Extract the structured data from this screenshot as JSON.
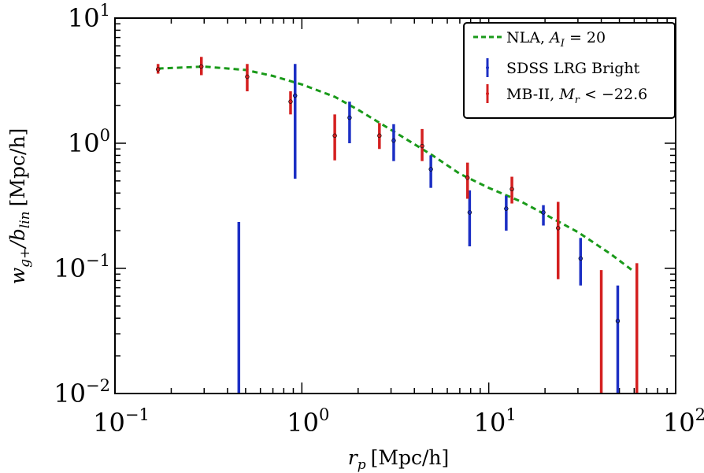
{
  "chart_data": {
    "type": "scatter",
    "xlabel": "r",
    "xlabel_sub": "p",
    "xlabel_units": "[Mpc/h]",
    "ylabel": "w",
    "ylabel_sub1": "g+",
    "ylabel_mid": "/b",
    "ylabel_sub2": "lin",
    "ylabel_units": "[Mpc/h]",
    "x_scale": "log",
    "y_scale": "log",
    "xlim": [
      0.1,
      100
    ],
    "ylim": [
      0.01,
      10
    ],
    "x_ticks": [
      {
        "value": 0.1,
        "base": "10",
        "exp": "−1"
      },
      {
        "value": 1,
        "base": "10",
        "exp": "0"
      },
      {
        "value": 10,
        "base": "10",
        "exp": "1"
      },
      {
        "value": 100,
        "base": "10",
        "exp": "2"
      }
    ],
    "y_ticks": [
      {
        "value": 0.01,
        "base": "10",
        "exp": "−2"
      },
      {
        "value": 0.1,
        "base": "10",
        "exp": "−1"
      },
      {
        "value": 1,
        "base": "10",
        "exp": "0"
      },
      {
        "value": 10,
        "base": "10",
        "exp": "1"
      }
    ],
    "legend_position": "top-right",
    "series": [
      {
        "name": "NLA, ",
        "name_math": "A",
        "name_sub": "I",
        "name_tail": " = 20",
        "kind": "line",
        "style": "dashed",
        "color": "#1a9a1a",
        "points": [
          [
            0.17,
            3.95
          ],
          [
            0.3,
            4.1
          ],
          [
            0.5,
            3.85
          ],
          [
            0.7,
            3.45
          ],
          [
            1.0,
            2.95
          ],
          [
            1.5,
            2.35
          ],
          [
            2.0,
            1.85
          ],
          [
            3.0,
            1.28
          ],
          [
            5.0,
            0.8
          ],
          [
            7.0,
            0.57
          ],
          [
            10.0,
            0.44
          ],
          [
            15.0,
            0.34
          ],
          [
            20.0,
            0.27
          ],
          [
            30.0,
            0.195
          ],
          [
            45.0,
            0.13
          ],
          [
            60.0,
            0.094
          ]
        ]
      },
      {
        "name": "SDSS LRG Bright",
        "kind": "errorbar",
        "color": "#1c2fc4",
        "points": [
          {
            "x": 0.46,
            "y": null,
            "lo": 0.01,
            "hi": 0.235
          },
          {
            "x": 0.92,
            "y": 2.4,
            "lo": 0.52,
            "hi": 4.3
          },
          {
            "x": 1.8,
            "y": 1.6,
            "lo": 1.0,
            "hi": 2.15
          },
          {
            "x": 3.1,
            "y": 1.05,
            "lo": 0.72,
            "hi": 1.42
          },
          {
            "x": 4.9,
            "y": 0.62,
            "lo": 0.44,
            "hi": 0.8
          },
          {
            "x": 7.9,
            "y": 0.28,
            "lo": 0.15,
            "hi": 0.42
          },
          {
            "x": 12.4,
            "y": 0.3,
            "lo": 0.2,
            "hi": 0.38
          },
          {
            "x": 19.6,
            "y": 0.28,
            "lo": 0.22,
            "hi": 0.32
          },
          {
            "x": 31.0,
            "y": 0.12,
            "lo": 0.073,
            "hi": 0.175
          },
          {
            "x": 49.0,
            "y": 0.038,
            "lo": 0.01,
            "hi": 0.073
          }
        ]
      },
      {
        "name": "MB-II, ",
        "name_math": "M",
        "name_sub": "r",
        "name_tail": " < −22.6",
        "kind": "errorbar",
        "color": "#d42020",
        "points": [
          {
            "x": 0.17,
            "y": 3.9,
            "lo": 3.6,
            "hi": 4.3
          },
          {
            "x": 0.29,
            "y": 4.1,
            "lo": 3.5,
            "hi": 4.9
          },
          {
            "x": 0.51,
            "y": 3.4,
            "lo": 2.6,
            "hi": 4.3
          },
          {
            "x": 0.87,
            "y": 2.15,
            "lo": 1.7,
            "hi": 2.6
          },
          {
            "x": 1.5,
            "y": 1.15,
            "lo": 0.73,
            "hi": 1.7
          },
          {
            "x": 2.6,
            "y": 1.15,
            "lo": 0.9,
            "hi": 1.45
          },
          {
            "x": 4.4,
            "y": 0.95,
            "lo": 0.72,
            "hi": 1.3
          },
          {
            "x": 7.7,
            "y": 0.53,
            "lo": 0.36,
            "hi": 0.7
          },
          {
            "x": 13.3,
            "y": 0.43,
            "lo": 0.33,
            "hi": 0.54
          },
          {
            "x": 23.5,
            "y": 0.21,
            "lo": 0.082,
            "hi": 0.34
          },
          {
            "x": 40.0,
            "y": null,
            "lo": 0.01,
            "hi": 0.097
          },
          {
            "x": 62.0,
            "y": null,
            "lo": 0.01,
            "hi": 0.11
          }
        ]
      }
    ]
  }
}
